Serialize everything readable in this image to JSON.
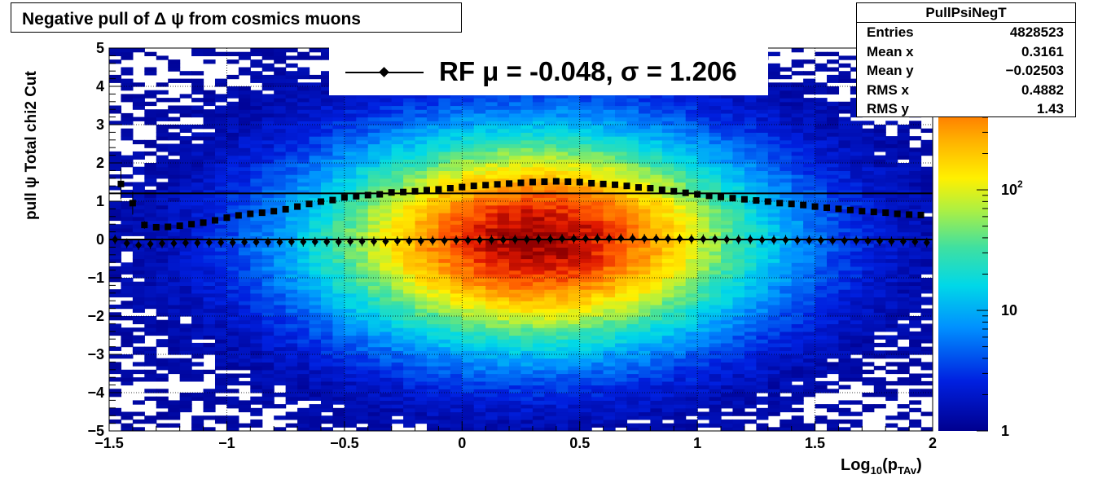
{
  "title": "Negative pull of Δ ψ from cosmics muons",
  "stats": {
    "name": "PullPsiNegT",
    "rows": [
      {
        "key": "Entries",
        "value": "4828523"
      },
      {
        "key": "Mean x",
        "value": "0.3161"
      },
      {
        "key": "Mean y",
        "value": "−0.02503"
      },
      {
        "key": "RMS x",
        "value": "0.4882"
      },
      {
        "key": "RMS y",
        "value": "1.43"
      }
    ]
  },
  "legend": {
    "label": "RF μ = -0.048, σ =   1.206"
  },
  "chart_data": {
    "type": "heatmap",
    "title": "Negative pull of Δ ψ from cosmics muons",
    "xlabel_main": "Log",
    "xlabel_sub1": "10",
    "xlabel_mid": "(p",
    "xlabel_sub2": "TAv",
    "xlabel_end": ")",
    "ylabel": "pull ψ    Total chi2 Cut",
    "xlim": [
      -1.5,
      2.0
    ],
    "ylim": [
      -5,
      5
    ],
    "x_ticks": [
      {
        "v": -1.5,
        "label": "−1.5"
      },
      {
        "v": -1,
        "label": "−1"
      },
      {
        "v": -0.5,
        "label": "−0.5"
      },
      {
        "v": 0,
        "label": "0"
      },
      {
        "v": 0.5,
        "label": "0.5"
      },
      {
        "v": 1,
        "label": "1"
      },
      {
        "v": 1.5,
        "label": "1.5"
      },
      {
        "v": 2,
        "label": "2"
      }
    ],
    "y_ticks": [
      {
        "v": 5,
        "label": "5"
      },
      {
        "v": 4,
        "label": "4"
      },
      {
        "v": 3,
        "label": "3"
      },
      {
        "v": 2,
        "label": "2"
      },
      {
        "v": 1,
        "label": "1"
      },
      {
        "v": 0,
        "label": "0"
      },
      {
        "v": -1,
        "label": "−1"
      },
      {
        "v": -2,
        "label": "−2"
      },
      {
        "v": -3,
        "label": "−3"
      },
      {
        "v": -4,
        "label": "−4"
      },
      {
        "v": -5,
        "label": "−5"
      }
    ],
    "grid": true,
    "z_scale": "log",
    "z_ticks": [
      {
        "v": 1,
        "label": "1"
      },
      {
        "v": 10,
        "label": "10"
      },
      {
        "v": 100,
        "label": "10",
        "exp": "2"
      }
    ],
    "zlim": [
      1,
      1500
    ],
    "density_center": {
      "x": 0.32,
      "y": 0.0
    },
    "reference_lines": [
      0,
      1.206
    ],
    "sigma_points": {
      "x": [
        -1.45,
        -1.4,
        -1.35,
        -1.3,
        -1.25,
        -1.2,
        -1.15,
        -1.1,
        -1.05,
        -1.0,
        -0.95,
        -0.9,
        -0.85,
        -0.8,
        -0.75,
        -0.7,
        -0.65,
        -0.6,
        -0.55,
        -0.5,
        -0.45,
        -0.4,
        -0.35,
        -0.3,
        -0.25,
        -0.2,
        -0.15,
        -0.1,
        -0.05,
        0.0,
        0.05,
        0.1,
        0.15,
        0.2,
        0.25,
        0.3,
        0.35,
        0.4,
        0.45,
        0.5,
        0.55,
        0.6,
        0.65,
        0.7,
        0.75,
        0.8,
        0.85,
        0.9,
        0.95,
        1.0,
        1.05,
        1.1,
        1.15,
        1.2,
        1.25,
        1.3,
        1.35,
        1.4,
        1.45,
        1.5,
        1.55,
        1.6,
        1.65,
        1.7,
        1.75,
        1.8,
        1.85,
        1.9,
        1.95
      ],
      "y": [
        1.45,
        0.95,
        0.38,
        0.32,
        0.33,
        0.36,
        0.4,
        0.44,
        0.5,
        0.57,
        0.63,
        0.67,
        0.7,
        0.74,
        0.79,
        0.86,
        0.93,
        0.99,
        1.03,
        1.1,
        1.13,
        1.16,
        1.18,
        1.23,
        1.24,
        1.26,
        1.29,
        1.31,
        1.34,
        1.37,
        1.4,
        1.42,
        1.44,
        1.46,
        1.48,
        1.5,
        1.51,
        1.52,
        1.51,
        1.5,
        1.47,
        1.45,
        1.43,
        1.4,
        1.36,
        1.34,
        1.3,
        1.26,
        1.22,
        1.18,
        1.14,
        1.11,
        1.08,
        1.05,
        1.02,
        0.99,
        0.95,
        0.93,
        0.9,
        0.86,
        0.83,
        0.8,
        0.77,
        0.74,
        0.72,
        0.7,
        0.67,
        0.65,
        0.64
      ],
      "err": [
        0.4,
        0.3,
        0.1,
        0.05,
        0.04,
        0.04,
        0.03,
        0.03,
        0.02,
        0.02,
        0.02,
        0.02,
        0.02,
        0.02,
        0.02,
        0.02,
        0.02,
        0.02,
        0.02,
        0.02,
        0.02,
        0.02,
        0.02,
        0.02,
        0.02,
        0.02,
        0.02,
        0.02,
        0.02,
        0.02,
        0.02,
        0.02,
        0.02,
        0.02,
        0.02,
        0.02,
        0.02,
        0.02,
        0.02,
        0.02,
        0.02,
        0.02,
        0.02,
        0.02,
        0.02,
        0.02,
        0.02,
        0.02,
        0.02,
        0.02,
        0.02,
        0.02,
        0.02,
        0.02,
        0.02,
        0.02,
        0.02,
        0.02,
        0.02,
        0.02,
        0.02,
        0.02,
        0.02,
        0.02,
        0.02,
        0.02,
        0.02,
        0.02,
        0.02
      ]
    },
    "mean_points": {
      "x": [
        -1.475,
        -1.425,
        -1.375,
        -1.325,
        -1.275,
        -1.225,
        -1.175,
        -1.125,
        -1.075,
        -1.025,
        -0.975,
        -0.925,
        -0.875,
        -0.825,
        -0.775,
        -0.725,
        -0.675,
        -0.625,
        -0.575,
        -0.525,
        -0.475,
        -0.425,
        -0.375,
        -0.325,
        -0.275,
        -0.225,
        -0.175,
        -0.125,
        -0.075,
        -0.025,
        0.025,
        0.075,
        0.125,
        0.175,
        0.225,
        0.275,
        0.325,
        0.375,
        0.425,
        0.475,
        0.525,
        0.575,
        0.625,
        0.675,
        0.725,
        0.775,
        0.825,
        0.875,
        0.925,
        0.975,
        1.025,
        1.075,
        1.125,
        1.175,
        1.225,
        1.275,
        1.325,
        1.375,
        1.425,
        1.475,
        1.525,
        1.575,
        1.625,
        1.675,
        1.725,
        1.775,
        1.825,
        1.875,
        1.925,
        1.975
      ],
      "y": [
        0.0,
        -0.1,
        -0.15,
        -0.12,
        -0.1,
        -0.1,
        -0.09,
        -0.09,
        -0.08,
        -0.08,
        -0.08,
        -0.07,
        -0.07,
        -0.07,
        -0.07,
        -0.06,
        -0.06,
        -0.06,
        -0.06,
        -0.06,
        -0.05,
        -0.05,
        -0.05,
        -0.05,
        -0.04,
        -0.04,
        -0.04,
        -0.03,
        -0.03,
        -0.02,
        -0.02,
        -0.01,
        -0.01,
        -0.01,
        0.0,
        0.0,
        0.01,
        0.01,
        0.02,
        0.02,
        0.02,
        0.03,
        0.03,
        0.03,
        0.03,
        0.02,
        0.02,
        0.02,
        0.02,
        0.01,
        0.01,
        0.01,
        0.0,
        0.0,
        0.0,
        -0.01,
        -0.01,
        -0.01,
        -0.02,
        -0.02,
        -0.02,
        -0.03,
        -0.03,
        -0.03,
        -0.04,
        -0.04,
        -0.05,
        -0.05,
        -0.06,
        -0.08
      ]
    }
  }
}
